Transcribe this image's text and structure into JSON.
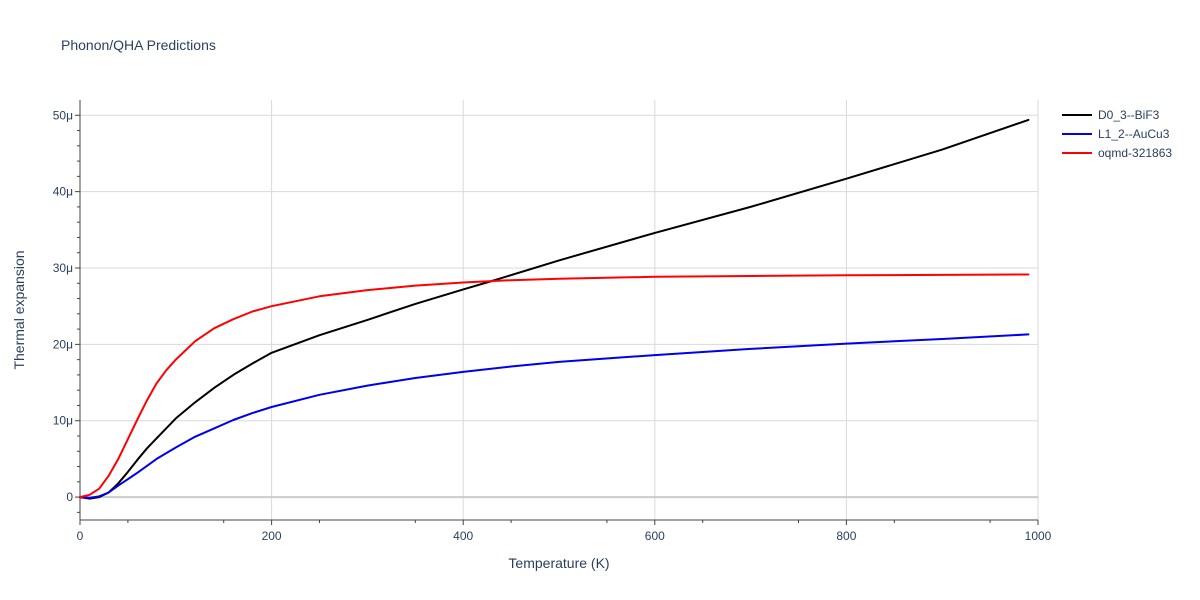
{
  "chart_data": {
    "type": "line",
    "title": "Phonon/QHA Predictions",
    "xlabel": "Temperature (K)",
    "ylabel": "Thermal expansion",
    "xlim": [
      0,
      1000
    ],
    "ylim": [
      -3e-06,
      5.2e-05
    ],
    "x_ticks": [
      {
        "value": 0,
        "label": "0"
      },
      {
        "value": 200,
        "label": "200"
      },
      {
        "value": 400,
        "label": "400"
      },
      {
        "value": 600,
        "label": "600"
      },
      {
        "value": 800,
        "label": "800"
      },
      {
        "value": 1000,
        "label": "1000"
      }
    ],
    "y_ticks": [
      {
        "value": 0,
        "label": "0"
      },
      {
        "value": 1e-05,
        "label": "10μ"
      },
      {
        "value": 2e-05,
        "label": "20μ"
      },
      {
        "value": 3e-05,
        "label": "30μ"
      },
      {
        "value": 4e-05,
        "label": "40μ"
      },
      {
        "value": 5e-05,
        "label": "50μ"
      }
    ],
    "grid": true,
    "legend_position": "top-right",
    "series": [
      {
        "name": "D0_3--BiF3",
        "color": "#000000",
        "x": [
          0,
          10,
          20,
          30,
          40,
          50,
          60,
          70,
          80,
          100,
          120,
          140,
          160,
          180,
          200,
          250,
          300,
          350,
          400,
          430,
          500,
          600,
          700,
          800,
          900,
          990
        ],
        "y": [
          0,
          -2e-07,
          0.0,
          6e-07,
          1.8e-06,
          3.3e-06,
          4.9e-06,
          6.4e-06,
          7.7e-06,
          1.03e-05,
          1.24e-05,
          1.43e-05,
          1.6e-05,
          1.75e-05,
          1.89e-05,
          2.12e-05,
          2.32e-05,
          2.53e-05,
          2.72e-05,
          2.83e-05,
          3.1e-05,
          3.46e-05,
          3.8e-05,
          4.17e-05,
          4.55e-05,
          4.94e-05
        ]
      },
      {
        "name": "L1_2--AuCu3",
        "color": "#0000ee",
        "x": [
          0,
          10,
          20,
          30,
          40,
          60,
          80,
          100,
          120,
          140,
          160,
          180,
          200,
          250,
          300,
          350,
          400,
          450,
          500,
          600,
          700,
          800,
          900,
          990
        ],
        "y": [
          0,
          -1e-07,
          1e-07,
          6e-07,
          1.5e-06,
          3.2e-06,
          5e-06,
          6.5e-06,
          7.9e-06,
          9e-06,
          1.01e-05,
          1.1e-05,
          1.18e-05,
          1.34e-05,
          1.46e-05,
          1.56e-05,
          1.64e-05,
          1.71e-05,
          1.77e-05,
          1.86e-05,
          1.94e-05,
          2.01e-05,
          2.07e-05,
          2.13e-05
        ]
      },
      {
        "name": "oqmd-321863",
        "color": "#ff0000",
        "x": [
          0,
          10,
          20,
          30,
          40,
          50,
          60,
          70,
          80,
          90,
          100,
          120,
          140,
          160,
          180,
          200,
          250,
          300,
          350,
          400,
          450,
          500,
          600,
          700,
          800,
          900,
          990
        ],
        "y": [
          0,
          3e-07,
          1.1e-06,
          2.8e-06,
          5e-06,
          7.6e-06,
          1.02e-05,
          1.27e-05,
          1.49e-05,
          1.66e-05,
          1.8e-05,
          2.04e-05,
          2.21e-05,
          2.33e-05,
          2.43e-05,
          2.5e-05,
          2.63e-05,
          2.71e-05,
          2.77e-05,
          2.81e-05,
          2.84e-05,
          2.86e-05,
          2.885e-05,
          2.895e-05,
          2.905e-05,
          2.91e-05,
          2.915e-05
        ]
      }
    ]
  }
}
